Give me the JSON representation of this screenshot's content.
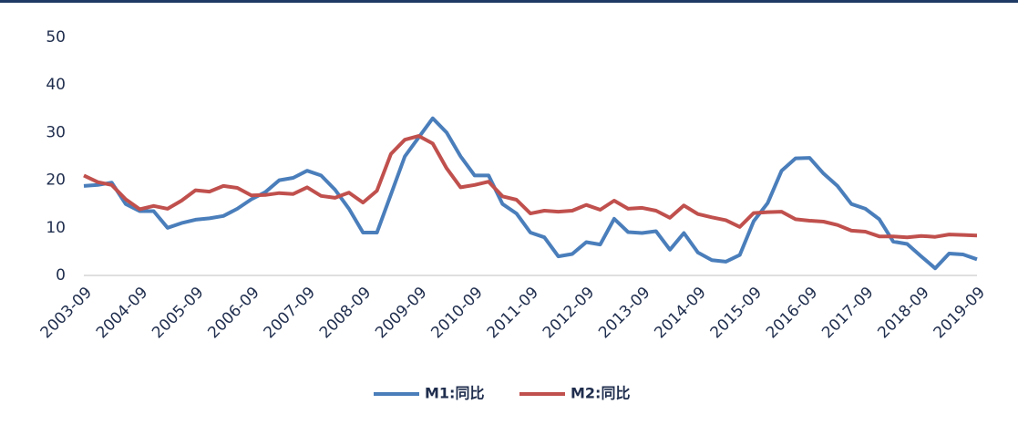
{
  "chart_data": {
    "type": "line",
    "categories": [
      "2003-09",
      null,
      null,
      null,
      "2004-09",
      null,
      null,
      null,
      "2005-09",
      null,
      null,
      null,
      "2006-09",
      null,
      null,
      null,
      "2007-09",
      null,
      null,
      null,
      "2008-09",
      null,
      null,
      null,
      "2009-09",
      null,
      null,
      null,
      "2010-09",
      null,
      null,
      null,
      "2011-09",
      null,
      null,
      null,
      "2012-09",
      null,
      null,
      null,
      "2013-09",
      null,
      null,
      null,
      "2014-09",
      null,
      null,
      null,
      "2015-09",
      null,
      null,
      null,
      "2016-09",
      null,
      null,
      null,
      "2017-09",
      null,
      null,
      null,
      "2018-09",
      null,
      null,
      null,
      "2019-09"
    ],
    "series": [
      {
        "name": "M1:同比",
        "color": "#4a7ebb",
        "values": [
          18.8,
          19,
          19.5,
          15,
          13.5,
          13.5,
          10,
          11,
          11.7,
          12,
          12.5,
          14,
          16,
          17.5,
          20,
          20.5,
          22,
          21,
          18,
          14,
          9,
          9,
          17,
          25,
          29,
          33,
          30,
          25,
          21,
          21,
          15,
          13,
          9,
          8,
          4,
          4.5,
          7,
          6.5,
          11.9,
          9.1,
          8.9,
          9.3,
          5.4,
          8.9,
          4.8,
          3.2,
          2.9,
          4.3,
          11.4,
          15.2,
          22,
          24.6,
          24.7,
          21.4,
          18.8,
          15,
          14,
          11.8,
          7.1,
          6.6,
          4,
          1.5,
          4.6,
          4.4,
          3.4
        ]
      },
      {
        "name": "M2:同比",
        "color": "#c0504d",
        "values": [
          21,
          19.6,
          19,
          16,
          13.9,
          14.6,
          14,
          15.7,
          17.9,
          17.6,
          18.8,
          18.4,
          16.8,
          16.9,
          17.3,
          17.1,
          18.5,
          16.7,
          16.3,
          17.4,
          15.3,
          17.8,
          25.5,
          28.5,
          29.3,
          27.7,
          22.5,
          18.5,
          19,
          19.7,
          16.6,
          15.9,
          13,
          13.6,
          13.4,
          13.6,
          14.8,
          13.8,
          15.7,
          14,
          14.2,
          13.6,
          12.1,
          14.7,
          12.9,
          12.2,
          11.6,
          10.2,
          13.1,
          13.3,
          13.4,
          11.8,
          11.5,
          11.3,
          10.6,
          9.4,
          9.2,
          8.2,
          8.2,
          8,
          8.3,
          8.1,
          8.6,
          8.5,
          8.4
        ]
      }
    ],
    "ylim": [
      0,
      50
    ],
    "yticks": [
      0,
      10,
      20,
      30,
      40,
      50
    ],
    "grid": false
  }
}
